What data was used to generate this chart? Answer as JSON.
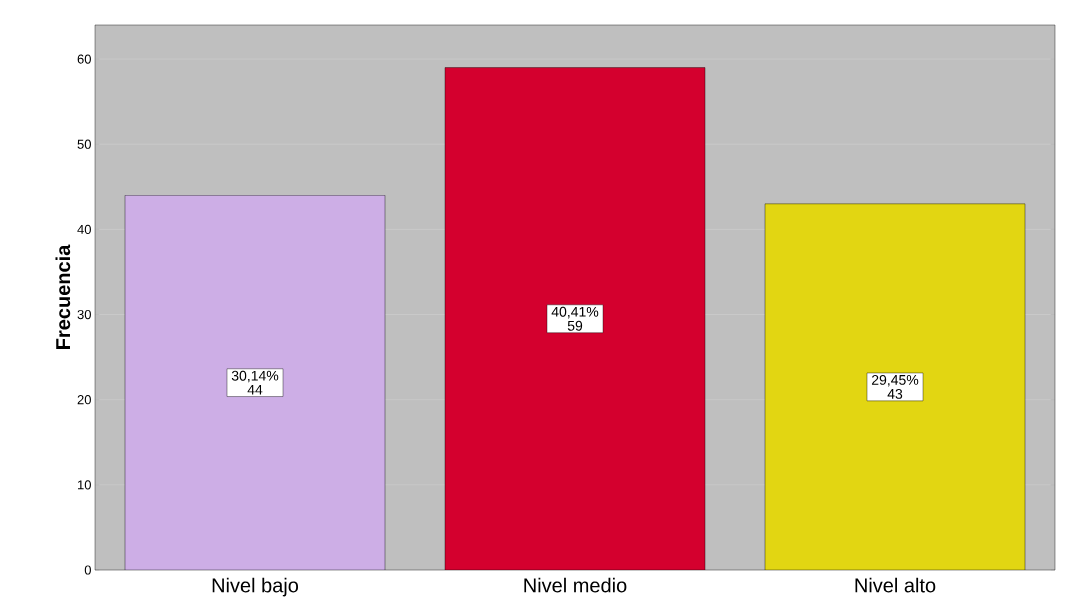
{
  "chart_data": {
    "type": "bar",
    "ylabel": "Frecuencia",
    "categories": [
      "Nivel bajo",
      "Nivel medio",
      "Nivel alto"
    ],
    "values": [
      44,
      59,
      43
    ],
    "colors": [
      "#cdaee6",
      "#d4002e",
      "#e2d612"
    ],
    "value_labels": [
      "30,14% 44",
      "40,41% 59",
      "29,45% 43"
    ],
    "ylim": [
      0,
      64
    ],
    "yticks": [
      0,
      10,
      20,
      30,
      40,
      50,
      60
    ],
    "grid": "y"
  }
}
